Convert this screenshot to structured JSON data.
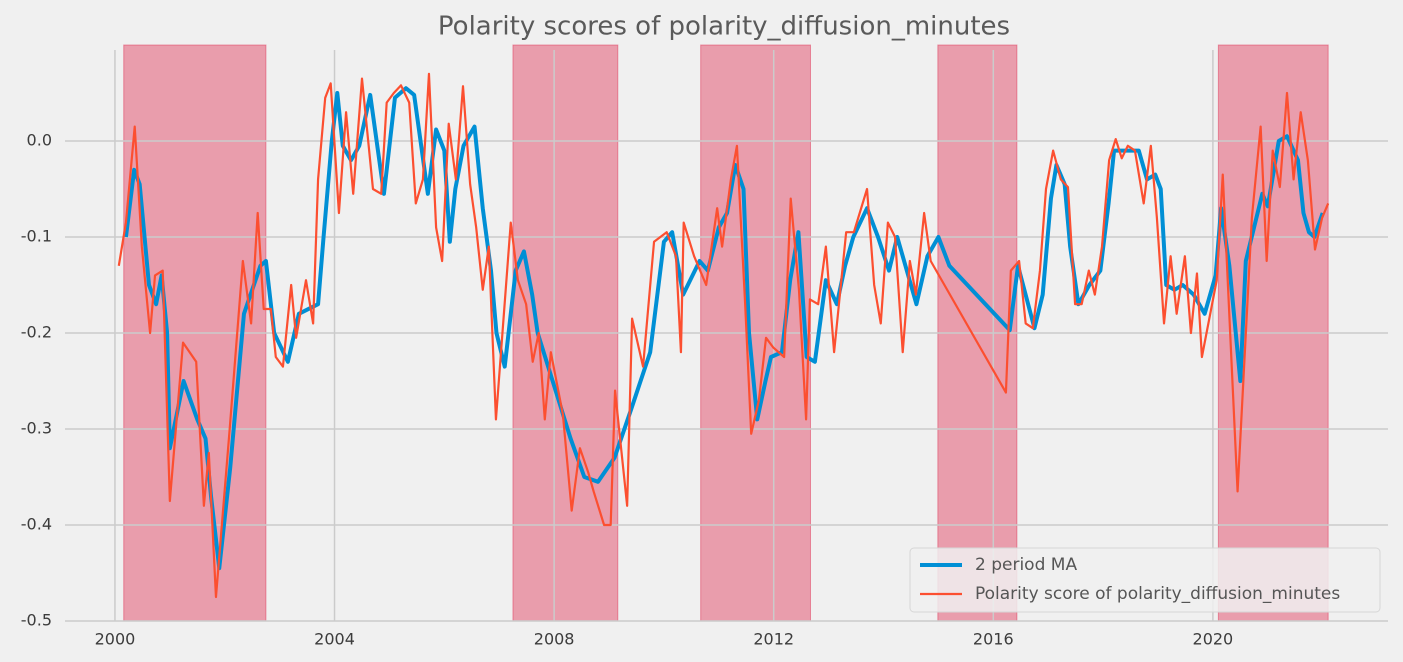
{
  "chart_data": {
    "type": "line",
    "title": "Polarity scores of polarity_diffusion_minutes",
    "xlim": [
      1999.09,
      2023.19
    ],
    "xticks": [
      2000,
      2004,
      2008,
      2012,
      2016,
      2020
    ],
    "ylim": [
      -0.5,
      0.1
    ],
    "yticks": [
      -0.5,
      -0.4,
      -0.3,
      -0.2,
      -0.1,
      {
        "value": 0,
        "label": "0.0"
      }
    ],
    "grid": true,
    "legend": "lower right",
    "shaded_color": "#dc143c",
    "shaded_regions": [
      [
        2000.16,
        2002.75
      ],
      [
        2007.25,
        2009.16
      ],
      [
        2010.67,
        2012.67
      ],
      [
        2014.99,
        2016.43
      ],
      [
        2020.1,
        2022.1
      ]
    ],
    "series": [
      {
        "name": "2 period MA",
        "color": "#008fd5",
        "x": [
          2000.2,
          2000.35,
          2000.45,
          2000.62,
          2000.75,
          2000.85,
          2000.95,
          2001.0,
          2001.25,
          2001.5,
          2001.65,
          2001.75,
          2001.9,
          2002.1,
          2002.35,
          2002.5,
          2002.65,
          2002.75,
          2002.9,
          2003.15,
          2003.35,
          2003.7,
          2003.8,
          2003.95,
          2004.05,
          2004.15,
          2004.3,
          2004.45,
          2004.65,
          2004.9,
          2005.1,
          2005.3,
          2005.45,
          2005.7,
          2005.85,
          2006.0,
          2006.1,
          2006.2,
          2006.35,
          2006.55,
          2006.7,
          2006.85,
          2006.95,
          2007.1,
          2007.3,
          2007.45,
          2007.6,
          2007.7,
          2008.0,
          2008.3,
          2008.55,
          2008.8,
          2009.1,
          2009.4,
          2009.75,
          2010.0,
          2010.15,
          2010.35,
          2010.65,
          2010.8,
          2011.0,
          2011.15,
          2011.3,
          2011.45,
          2011.55,
          2011.7,
          2011.85,
          2011.95,
          2012.15,
          2012.3,
          2012.45,
          2012.6,
          2012.75,
          2012.95,
          2013.15,
          2013.3,
          2013.45,
          2013.7,
          2013.9,
          2014.1,
          2014.25,
          2014.6,
          2014.8,
          2015.0,
          2015.2,
          2016.3,
          2016.45,
          2016.75,
          2016.9,
          2017.05,
          2017.15,
          2017.3,
          2017.4,
          2017.55,
          2017.75,
          2017.95,
          2018.1,
          2018.2,
          2018.35,
          2018.5,
          2018.65,
          2018.8,
          2018.95,
          2019.05,
          2019.15,
          2019.3,
          2019.45,
          2019.65,
          2019.85,
          2020.05,
          2020.15,
          2020.3,
          2020.5,
          2020.6,
          2020.9,
          2021.0,
          2021.2,
          2021.35,
          2021.55,
          2021.65,
          2021.75,
          2021.85,
          2022.0
        ],
        "values": [
          -0.1,
          -0.03,
          -0.045,
          -0.15,
          -0.17,
          -0.14,
          -0.2,
          -0.32,
          -0.25,
          -0.29,
          -0.31,
          -0.37,
          -0.445,
          -0.34,
          -0.18,
          -0.155,
          -0.13,
          -0.125,
          -0.2,
          -0.23,
          -0.18,
          -0.17,
          -0.1,
          0.0,
          0.05,
          -0.005,
          -0.02,
          -0.005,
          0.048,
          -0.055,
          0.045,
          0.055,
          0.048,
          -0.055,
          0.012,
          -0.01,
          -0.105,
          -0.05,
          -0.005,
          0.015,
          -0.07,
          -0.135,
          -0.2,
          -0.235,
          -0.135,
          -0.115,
          -0.16,
          -0.2,
          -0.255,
          -0.31,
          -0.35,
          -0.355,
          -0.33,
          -0.28,
          -0.22,
          -0.105,
          -0.095,
          -0.16,
          -0.125,
          -0.135,
          -0.09,
          -0.075,
          -0.025,
          -0.05,
          -0.2,
          -0.29,
          -0.25,
          -0.225,
          -0.22,
          -0.145,
          -0.095,
          -0.225,
          -0.23,
          -0.145,
          -0.17,
          -0.13,
          -0.1,
          -0.07,
          -0.1,
          -0.135,
          -0.1,
          -0.17,
          -0.12,
          -0.1,
          -0.13,
          -0.197,
          -0.13,
          -0.195,
          -0.16,
          -0.06,
          -0.025,
          -0.045,
          -0.11,
          -0.17,
          -0.15,
          -0.135,
          -0.065,
          -0.01,
          -0.01,
          -0.01,
          -0.01,
          -0.04,
          -0.035,
          -0.05,
          -0.15,
          -0.155,
          -0.15,
          -0.16,
          -0.18,
          -0.14,
          -0.07,
          -0.13,
          -0.25,
          -0.125,
          -0.055,
          -0.068,
          0.0,
          0.005,
          -0.02,
          -0.075,
          -0.095,
          -0.1,
          -0.075
        ]
      },
      {
        "name": "Polarity score of polarity_diffusion_minutes",
        "color": "#fc4f30",
        "x": [
          2000.07,
          2000.2,
          2000.36,
          2000.49,
          2000.64,
          2000.73,
          2000.87,
          2001.0,
          2001.24,
          2001.48,
          2001.62,
          2001.71,
          2001.84,
          2002.09,
          2002.33,
          2002.48,
          2002.6,
          2002.71,
          2002.84,
          2002.93,
          2003.06,
          2003.21,
          2003.3,
          2003.48,
          2003.61,
          2003.7,
          2003.83,
          2003.93,
          2004.08,
          2004.21,
          2004.34,
          2004.5,
          2004.7,
          2004.85,
          2004.95,
          2005.08,
          2005.21,
          2005.36,
          2005.48,
          2005.61,
          2005.72,
          2005.85,
          2005.96,
          2006.08,
          2006.21,
          2006.34,
          2006.47,
          2006.58,
          2006.7,
          2006.81,
          2006.94,
          2007.21,
          2007.34,
          2007.49,
          2007.61,
          2007.72,
          2007.83,
          2007.94,
          2008.16,
          2008.32,
          2008.47,
          2008.62,
          2008.72,
          2008.91,
          2009.03,
          2009.11,
          2009.33,
          2009.42,
          2009.62,
          2009.82,
          2010.05,
          2010.22,
          2010.31,
          2010.36,
          2010.55,
          2010.77,
          2010.97,
          2011.06,
          2011.22,
          2011.33,
          2011.48,
          2011.59,
          2011.73,
          2011.86,
          2011.99,
          2012.19,
          2012.31,
          2012.46,
          2012.59,
          2012.66,
          2012.81,
          2012.95,
          2013.1,
          2013.32,
          2013.46,
          2013.7,
          2013.83,
          2013.95,
          2014.08,
          2014.21,
          2014.35,
          2014.48,
          2014.59,
          2014.74,
          2014.86,
          2016.23,
          2016.32,
          2016.47,
          2016.59,
          2016.72,
          2016.85,
          2016.96,
          2017.09,
          2017.23,
          2017.36,
          2017.49,
          2017.61,
          2017.74,
          2017.85,
          2017.98,
          2018.11,
          2018.23,
          2018.34,
          2018.45,
          2018.58,
          2018.74,
          2018.87,
          2018.98,
          2019.11,
          2019.23,
          2019.34,
          2019.49,
          2019.6,
          2019.71,
          2019.8,
          2020.07,
          2020.18,
          2020.45,
          2020.71,
          2020.87,
          2020.98,
          2021.09,
          2021.22,
          2021.35,
          2021.47,
          2021.6,
          2021.73,
          2021.86,
          2021.99,
          2022.1
        ],
        "values": [
          -0.13,
          -0.085,
          0.015,
          -0.11,
          -0.2,
          -0.14,
          -0.135,
          -0.375,
          -0.21,
          -0.23,
          -0.38,
          -0.325,
          -0.475,
          -0.3,
          -0.125,
          -0.19,
          -0.075,
          -0.175,
          -0.175,
          -0.225,
          -0.235,
          -0.15,
          -0.205,
          -0.145,
          -0.19,
          -0.04,
          0.045,
          0.06,
          -0.075,
          0.03,
          -0.055,
          0.065,
          -0.05,
          -0.055,
          0.04,
          0.05,
          0.058,
          0.04,
          -0.065,
          -0.04,
          0.07,
          -0.09,
          -0.125,
          0.018,
          -0.04,
          0.057,
          -0.045,
          -0.09,
          -0.155,
          -0.11,
          -0.29,
          -0.085,
          -0.145,
          -0.17,
          -0.23,
          -0.2,
          -0.29,
          -0.22,
          -0.285,
          -0.385,
          -0.32,
          -0.345,
          -0.365,
          -0.4,
          -0.4,
          -0.26,
          -0.38,
          -0.185,
          -0.235,
          -0.105,
          -0.095,
          -0.12,
          -0.22,
          -0.085,
          -0.12,
          -0.15,
          -0.07,
          -0.11,
          -0.04,
          -0.005,
          -0.17,
          -0.305,
          -0.27,
          -0.205,
          -0.215,
          -0.225,
          -0.06,
          -0.155,
          -0.29,
          -0.165,
          -0.17,
          -0.11,
          -0.22,
          -0.095,
          -0.095,
          -0.05,
          -0.15,
          -0.19,
          -0.085,
          -0.1,
          -0.22,
          -0.125,
          -0.16,
          -0.075,
          -0.125,
          -0.262,
          -0.135,
          -0.125,
          -0.19,
          -0.195,
          -0.135,
          -0.05,
          -0.01,
          -0.04,
          -0.048,
          -0.17,
          -0.17,
          -0.135,
          -0.16,
          -0.11,
          -0.02,
          0.002,
          -0.018,
          -0.005,
          -0.01,
          -0.065,
          -0.005,
          -0.08,
          -0.19,
          -0.12,
          -0.18,
          -0.12,
          -0.2,
          -0.138,
          -0.225,
          -0.145,
          -0.035,
          -0.365,
          -0.08,
          0.015,
          -0.125,
          -0.01,
          -0.048,
          0.05,
          -0.04,
          0.03,
          -0.02,
          -0.113,
          -0.08,
          -0.065
        ]
      }
    ]
  }
}
